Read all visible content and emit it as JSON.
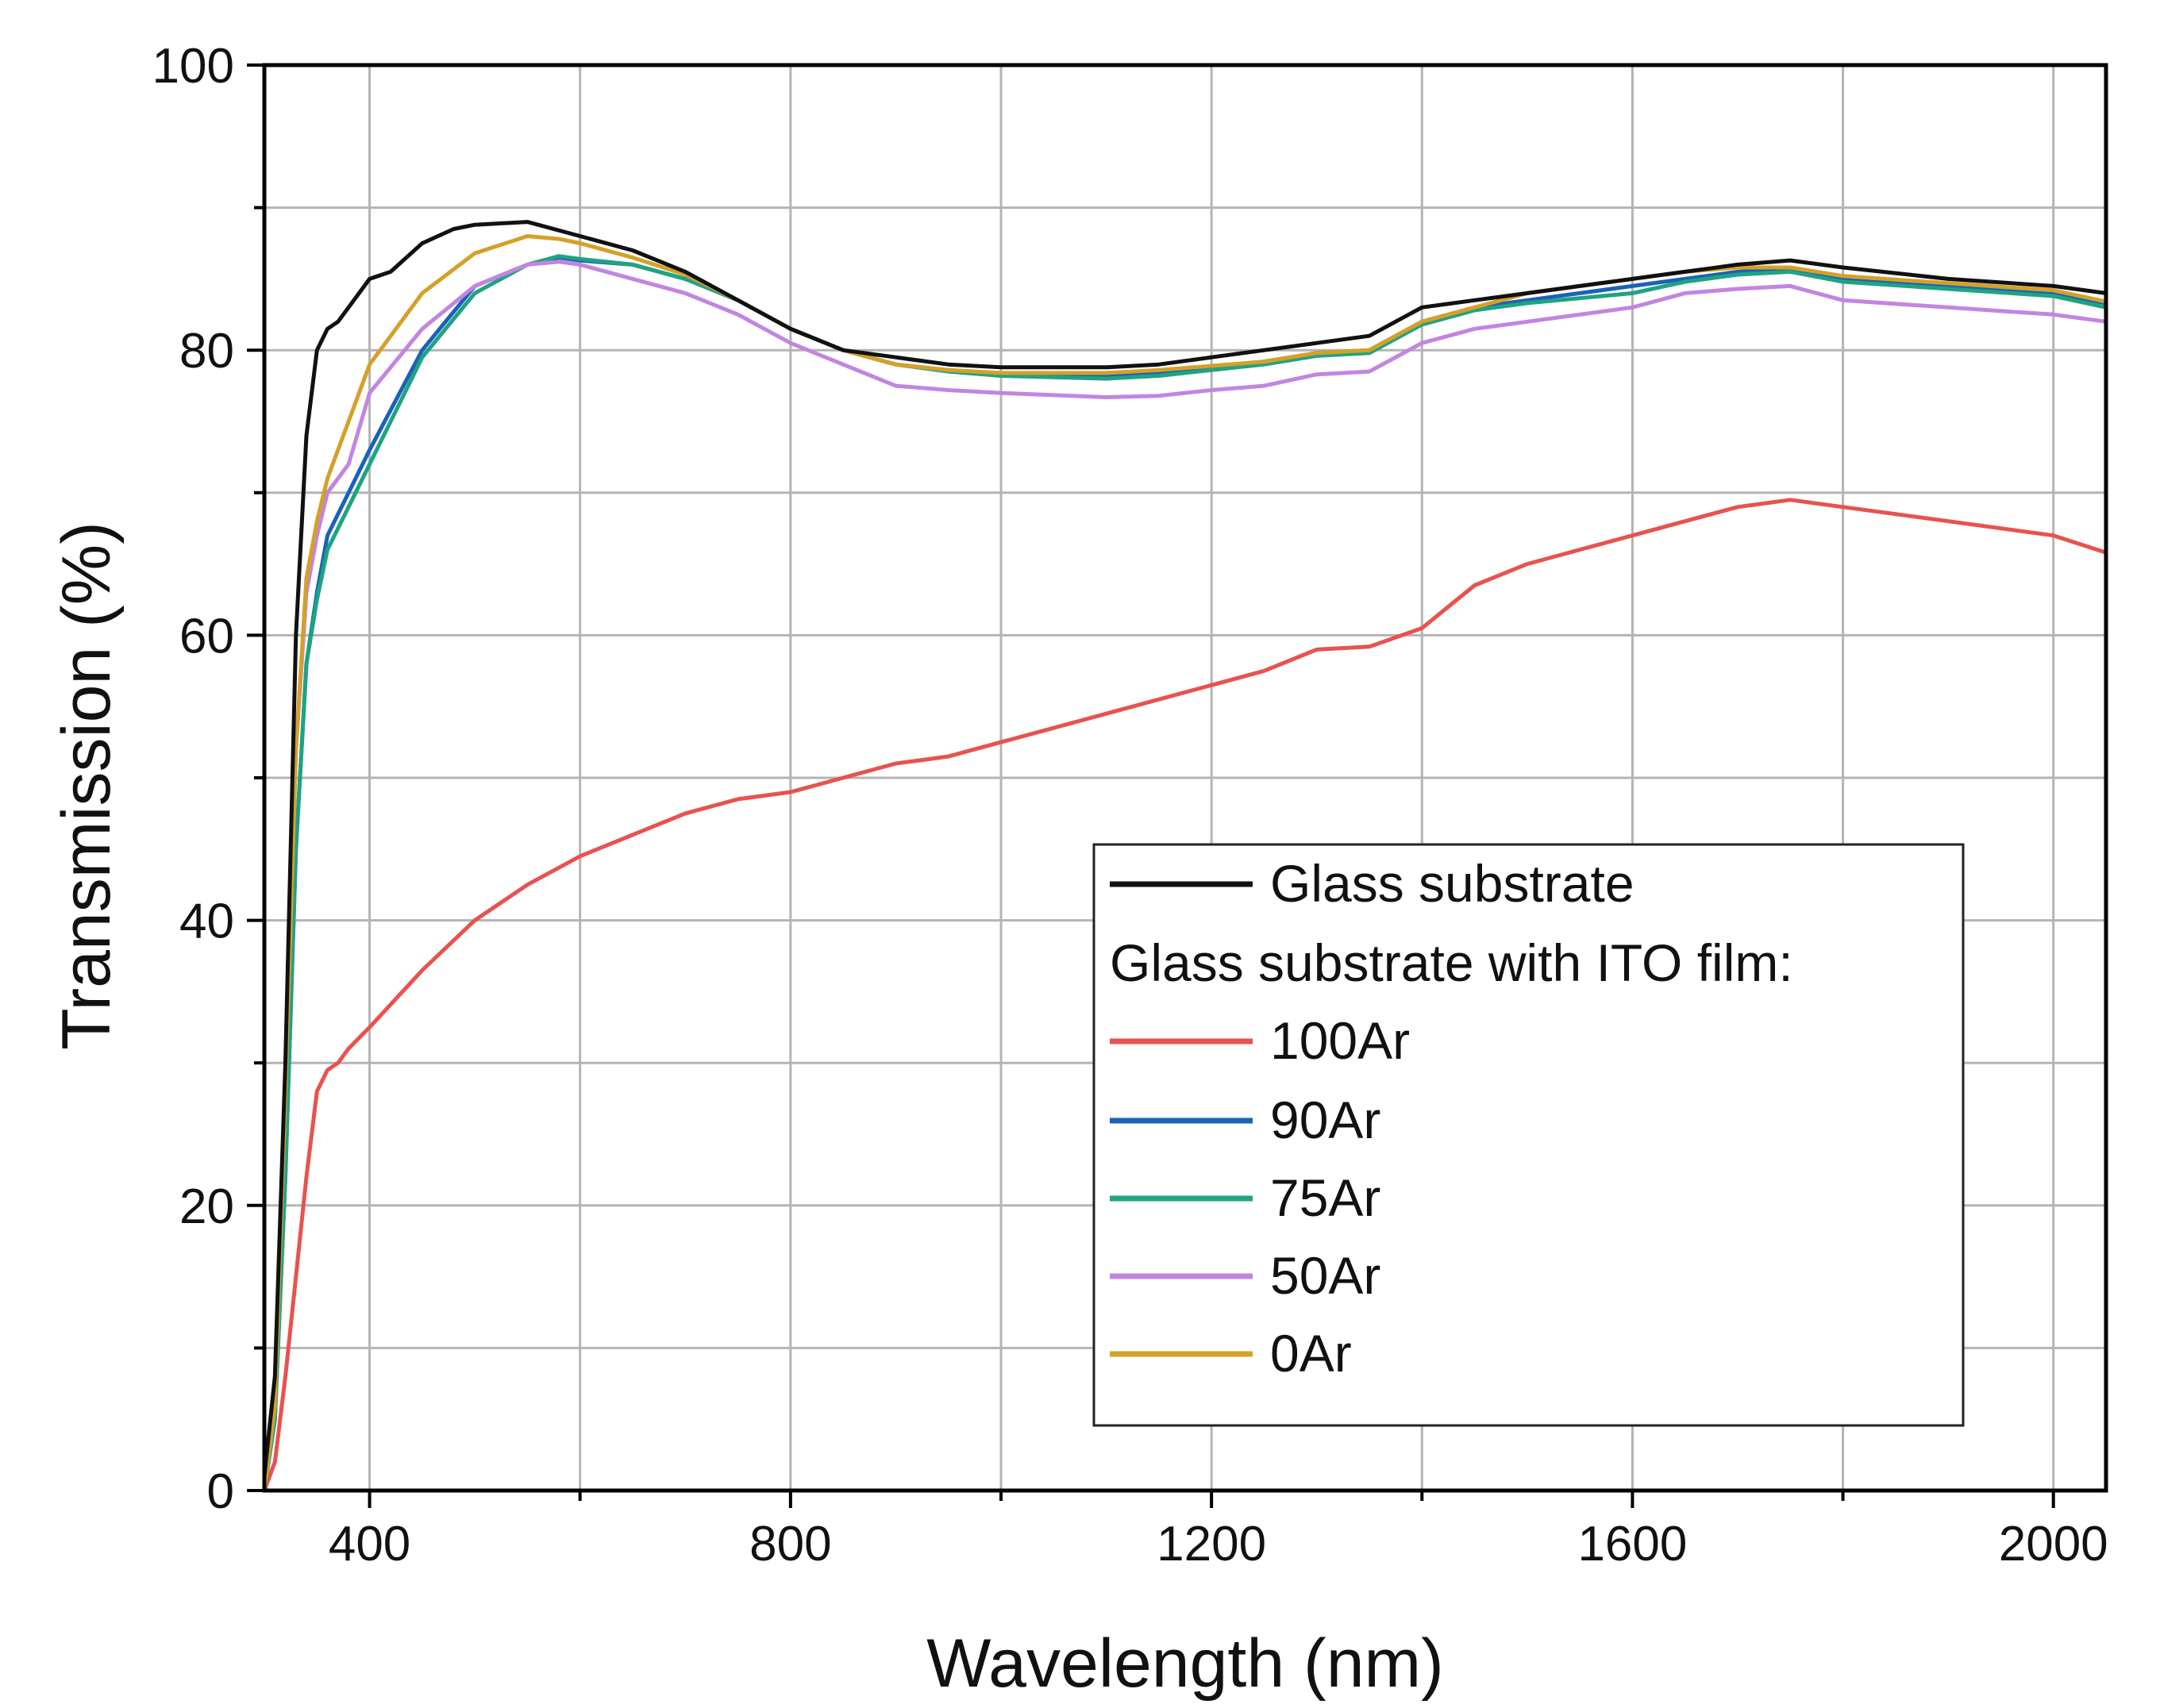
{
  "chart_data": {
    "type": "line",
    "title": "",
    "xlabel": "Wavelength (nm)",
    "ylabel": "Transmission (%)",
    "xlim": [
      300,
      2050
    ],
    "ylim": [
      0,
      100
    ],
    "xticks": [
      400,
      800,
      1200,
      1600,
      2000
    ],
    "yticks": [
      0,
      20,
      40,
      60,
      80,
      100
    ],
    "grid": true,
    "legend": {
      "placement": "lower-right",
      "subheading": "Glass substrate with ITO film:"
    },
    "series": [
      {
        "name": "Glass substrate",
        "color": "#111111",
        "x": [
          300,
          310,
          320,
          330,
          340,
          350,
          360,
          370,
          380,
          400,
          420,
          450,
          480,
          500,
          550,
          600,
          650,
          700,
          750,
          800,
          850,
          900,
          950,
          1000,
          1100,
          1150,
          1200,
          1300,
          1350,
          1400,
          1450,
          1500,
          1600,
          1650,
          1700,
          1750,
          1800,
          1900,
          2000,
          2050
        ],
        "y": [
          1,
          8,
          30,
          60,
          74,
          80,
          81.5,
          82,
          83,
          85,
          85.5,
          87.5,
          88.5,
          88.8,
          89,
          88,
          87,
          85.5,
          83.5,
          81.5,
          80,
          79.5,
          79,
          78.8,
          78.8,
          79,
          79.5,
          80.5,
          81,
          83,
          83.5,
          84,
          85,
          85.5,
          86,
          86.3,
          85.8,
          85,
          84.5,
          84
        ]
      },
      {
        "name": "100Ar",
        "color": "#e8524f",
        "x": [
          300,
          310,
          320,
          330,
          340,
          350,
          360,
          370,
          380,
          400,
          450,
          500,
          550,
          600,
          650,
          700,
          750,
          800,
          850,
          900,
          950,
          1000,
          1100,
          1150,
          1200,
          1250,
          1300,
          1350,
          1400,
          1450,
          1500,
          1550,
          1600,
          1650,
          1700,
          1750,
          1800,
          1850,
          1900,
          1950,
          2000,
          2050
        ],
        "y": [
          0,
          2,
          8,
          15,
          22,
          28,
          29.5,
          30,
          31,
          32.5,
          36.5,
          40,
          42.5,
          44.5,
          46,
          47.5,
          48.5,
          49,
          50,
          51,
          51.5,
          52.5,
          54.5,
          55.5,
          56.5,
          57.5,
          59,
          59.2,
          60.5,
          63.5,
          65,
          66,
          67,
          68,
          69,
          69.5,
          69,
          68.5,
          68,
          67.5,
          67,
          65.8
        ]
      },
      {
        "name": "90Ar",
        "color": "#1a62b8",
        "x": [
          300,
          310,
          320,
          330,
          340,
          350,
          360,
          380,
          400,
          450,
          500,
          550,
          580,
          600,
          650,
          700,
          750,
          800,
          850,
          900,
          950,
          1000,
          1100,
          1150,
          1200,
          1250,
          1300,
          1350,
          1400,
          1450,
          1500,
          1600,
          1650,
          1700,
          1750,
          1800,
          1900,
          2000,
          2050
        ],
        "y": [
          0,
          5,
          22,
          45,
          58,
          63,
          67,
          70,
          73,
          80,
          84.5,
          86,
          86.5,
          86.3,
          86,
          85,
          83.5,
          81.5,
          80,
          79,
          78.6,
          78.3,
          78.2,
          78.4,
          78.8,
          79.2,
          79.8,
          80,
          82,
          83,
          83.5,
          84.5,
          85,
          85.5,
          85.7,
          85,
          84.5,
          84,
          83.3
        ]
      },
      {
        "name": "75Ar",
        "color": "#1fa383",
        "x": [
          300,
          310,
          320,
          330,
          340,
          350,
          360,
          380,
          400,
          450,
          500,
          550,
          580,
          600,
          650,
          700,
          750,
          800,
          850,
          900,
          950,
          1000,
          1100,
          1150,
          1200,
          1250,
          1300,
          1350,
          1400,
          1450,
          1500,
          1600,
          1650,
          1700,
          1750,
          1800,
          1900,
          2000,
          2050
        ],
        "y": [
          0,
          5,
          22,
          45,
          58,
          62.5,
          66,
          69,
          72,
          79.5,
          84,
          86,
          86.6,
          86.4,
          86,
          85,
          83.5,
          81.5,
          80,
          79,
          78.5,
          78.2,
          78,
          78.2,
          78.6,
          79,
          79.6,
          79.8,
          81.8,
          82.8,
          83.3,
          84,
          84.8,
          85.3,
          85.5,
          84.8,
          84.3,
          83.8,
          83
        ]
      },
      {
        "name": "50Ar",
        "color": "#c285e0",
        "x": [
          300,
          310,
          320,
          330,
          340,
          350,
          360,
          380,
          400,
          450,
          500,
          550,
          580,
          600,
          650,
          700,
          750,
          800,
          850,
          900,
          950,
          1000,
          1100,
          1150,
          1200,
          1250,
          1300,
          1350,
          1400,
          1450,
          1500,
          1600,
          1650,
          1700,
          1750,
          1800,
          1900,
          2000,
          2050
        ],
        "y": [
          0,
          6,
          28,
          52,
          63,
          67,
          70,
          72,
          77,
          81.5,
          84.5,
          86,
          86.2,
          86,
          85,
          84,
          82.5,
          80.5,
          79,
          77.5,
          77.2,
          77,
          76.7,
          76.8,
          77.2,
          77.5,
          78.3,
          78.5,
          80.5,
          81.5,
          82,
          83,
          84,
          84.3,
          84.5,
          83.5,
          83,
          82.5,
          82
        ]
      },
      {
        "name": "0Ar",
        "color": "#d4a128",
        "x": [
          300,
          310,
          320,
          330,
          340,
          350,
          360,
          380,
          400,
          450,
          500,
          550,
          580,
          600,
          650,
          700,
          750,
          800,
          850,
          900,
          950,
          1000,
          1100,
          1150,
          1200,
          1250,
          1300,
          1350,
          1400,
          1450,
          1500,
          1600,
          1650,
          1700,
          1750,
          1800,
          1900,
          2000,
          2050
        ],
        "y": [
          0,
          6,
          28,
          52,
          64,
          68,
          71,
          75,
          79,
          84,
          86.8,
          88,
          87.8,
          87.5,
          86.5,
          85.3,
          83.5,
          81.5,
          80,
          79,
          78.6,
          78.4,
          78.4,
          78.6,
          78.9,
          79.2,
          79.8,
          80,
          82,
          83,
          84,
          85,
          85.5,
          85.8,
          85.8,
          85.2,
          84.7,
          84.2,
          83.4
        ]
      }
    ]
  }
}
